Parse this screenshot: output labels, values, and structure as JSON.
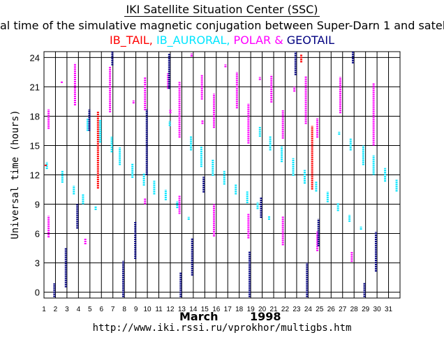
{
  "header": {
    "title": "IKI Satellite Situation Center (SSC)",
    "subtitle": "al time of the simulative magnetic conjugation between Super-Darn 1 and satellit"
  },
  "legend": {
    "items": [
      {
        "label": "IB_TAIL,",
        "color": "#ff0000"
      },
      {
        "label": " IB_AURORAL,",
        "color": "#00e5ff"
      },
      {
        "label": " POLAR",
        "color": "#ff00ff"
      },
      {
        "label": " & ",
        "color": "#ff00ff"
      },
      {
        "label": "GEOTAIL",
        "color": "#000080"
      }
    ]
  },
  "footer": {
    "month": "March",
    "year": "1998",
    "url": "http://www.iki.rssi.ru/vprokhor/multigbs.htm"
  },
  "chart_data": {
    "type": "scatter",
    "ylabel": "Universal time (hours)",
    "xlabel": "",
    "x_ticks": [
      "1",
      "2",
      "3",
      "4",
      "5",
      "6",
      "7",
      "8",
      "9",
      "10",
      "11",
      "12",
      "13",
      "14",
      "15",
      "16",
      "17",
      "18",
      "19",
      "20",
      "21",
      "22",
      "23",
      "24",
      "25",
      "26",
      "27",
      "28",
      "29",
      "30",
      "31"
    ],
    "y_ticks": [
      "0",
      "3",
      "6",
      "9",
      "12",
      "15",
      "18",
      "21",
      "24"
    ],
    "xlim": [
      1,
      32
    ],
    "ylim": [
      -0.6,
      24.6
    ],
    "grid": true,
    "series": [
      {
        "name": "IB_TAIL",
        "color": "#ff0000",
        "intervals": [
          [
            1.15,
            12.9,
            13.1
          ],
          [
            5.7,
            10.6,
            18.5
          ],
          [
            23.4,
            23.5,
            24.3
          ],
          [
            24.35,
            10.5,
            17.0
          ]
        ]
      },
      {
        "name": "IB_AURORAL",
        "color": "#00e5ff",
        "intervals": [
          [
            1.25,
            12.6,
            13.3
          ],
          [
            2.6,
            11.2,
            12.4
          ],
          [
            3.6,
            10.0,
            10.9
          ],
          [
            4.4,
            9.0,
            10.0
          ],
          [
            4.8,
            16.5,
            17.8
          ],
          [
            5.5,
            8.4,
            8.8
          ],
          [
            5.9,
            15.3,
            17.6
          ],
          [
            6.9,
            14.3,
            15.9
          ],
          [
            7.6,
            13.0,
            14.8
          ],
          [
            8.7,
            11.7,
            13.2
          ],
          [
            9.7,
            10.9,
            12.2
          ],
          [
            10.6,
            10.0,
            11.4
          ],
          [
            11.6,
            9.4,
            10.5
          ],
          [
            11.95,
            17.0,
            17.5
          ],
          [
            12.6,
            8.6,
            9.3
          ],
          [
            13.6,
            7.4,
            7.7
          ],
          [
            13.8,
            14.5,
            16.0
          ],
          [
            14.7,
            12.8,
            14.9
          ],
          [
            15.7,
            11.9,
            13.6
          ],
          [
            16.7,
            11.0,
            12.4
          ],
          [
            17.7,
            10.0,
            11.0
          ],
          [
            18.7,
            9.1,
            10.3
          ],
          [
            19.6,
            8.5,
            9.2
          ],
          [
            19.8,
            15.9,
            16.9
          ],
          [
            20.6,
            7.4,
            7.8
          ],
          [
            20.7,
            14.5,
            16.0
          ],
          [
            21.7,
            13.3,
            14.9
          ],
          [
            22.7,
            11.9,
            13.7
          ],
          [
            23.7,
            11.1,
            12.5
          ],
          [
            24.7,
            10.3,
            11.3
          ],
          [
            25.7,
            9.2,
            10.3
          ],
          [
            26.6,
            8.3,
            9.1
          ],
          [
            26.7,
            16.1,
            16.4
          ],
          [
            27.6,
            7.2,
            7.9
          ],
          [
            27.7,
            14.5,
            15.7
          ],
          [
            28.6,
            6.4,
            6.7
          ],
          [
            28.8,
            13.0,
            15.0
          ],
          [
            29.7,
            12.0,
            14.0
          ],
          [
            30.7,
            11.3,
            12.7
          ],
          [
            31.7,
            10.3,
            11.5
          ]
        ]
      },
      {
        "name": "POLAR",
        "color": "#ff00ff",
        "intervals": [
          [
            1.4,
            5.6,
            7.8
          ],
          [
            1.4,
            16.7,
            18.7
          ],
          [
            2.55,
            21.4,
            21.6
          ],
          [
            3.7,
            19.1,
            23.4
          ],
          [
            4.6,
            4.9,
            5.5
          ],
          [
            6.75,
            18.4,
            23.1
          ],
          [
            8.8,
            19.3,
            19.6
          ],
          [
            9.8,
            9.0,
            9.6
          ],
          [
            9.8,
            18.6,
            22.0
          ],
          [
            11.8,
            20.8,
            22.4
          ],
          [
            12.0,
            18.3,
            18.7
          ],
          [
            12.8,
            8.0,
            9.9
          ],
          [
            12.8,
            15.8,
            21.5
          ],
          [
            13.85,
            24.1,
            24.4
          ],
          [
            14.75,
            19.7,
            22.2
          ],
          [
            14.8,
            17.2,
            17.6
          ],
          [
            15.8,
            5.7,
            9.0
          ],
          [
            15.8,
            16.8,
            20.3
          ],
          [
            16.8,
            23.0,
            23.3
          ],
          [
            17.8,
            18.8,
            22.5
          ],
          [
            18.8,
            5.5,
            8.0
          ],
          [
            18.8,
            15.2,
            19.3
          ],
          [
            19.8,
            21.7,
            22.0
          ],
          [
            20.8,
            19.4,
            22.2
          ],
          [
            21.8,
            4.8,
            7.8
          ],
          [
            21.8,
            15.7,
            18.6
          ],
          [
            22.8,
            20.5,
            21.0
          ],
          [
            23.8,
            17.2,
            22.1
          ],
          [
            24.8,
            4.2,
            6.2
          ],
          [
            24.8,
            15.8,
            17.8
          ],
          [
            26.8,
            18.3,
            22.0
          ],
          [
            27.8,
            3.1,
            4.1
          ],
          [
            29.7,
            15.0,
            21.4
          ]
        ]
      },
      {
        "name": "GEOTAIL",
        "color": "#000080",
        "intervals": [
          [
            1.9,
            -0.5,
            0.9
          ],
          [
            2.9,
            0.5,
            4.5
          ],
          [
            3.9,
            6.5,
            9.0
          ],
          [
            4.95,
            16.5,
            18.7
          ],
          [
            6.95,
            23.2,
            24.6
          ],
          [
            7.9,
            -0.5,
            3.2
          ],
          [
            8.95,
            3.4,
            7.2
          ],
          [
            9.95,
            12.0,
            18.7
          ],
          [
            11.9,
            20.8,
            24.4
          ],
          [
            12.9,
            -0.5,
            2.0
          ],
          [
            13.9,
            1.7,
            5.5
          ],
          [
            14.9,
            10.2,
            11.8
          ],
          [
            18.9,
            -0.5,
            4.2
          ],
          [
            19.9,
            7.6,
            9.7
          ],
          [
            22.9,
            22.2,
            24.6
          ],
          [
            23.9,
            -0.5,
            3.0
          ],
          [
            24.9,
            4.7,
            7.5
          ],
          [
            27.9,
            23.4,
            24.6
          ],
          [
            28.9,
            -0.5,
            1.0
          ],
          [
            29.9,
            2.1,
            6.2
          ]
        ]
      }
    ]
  }
}
